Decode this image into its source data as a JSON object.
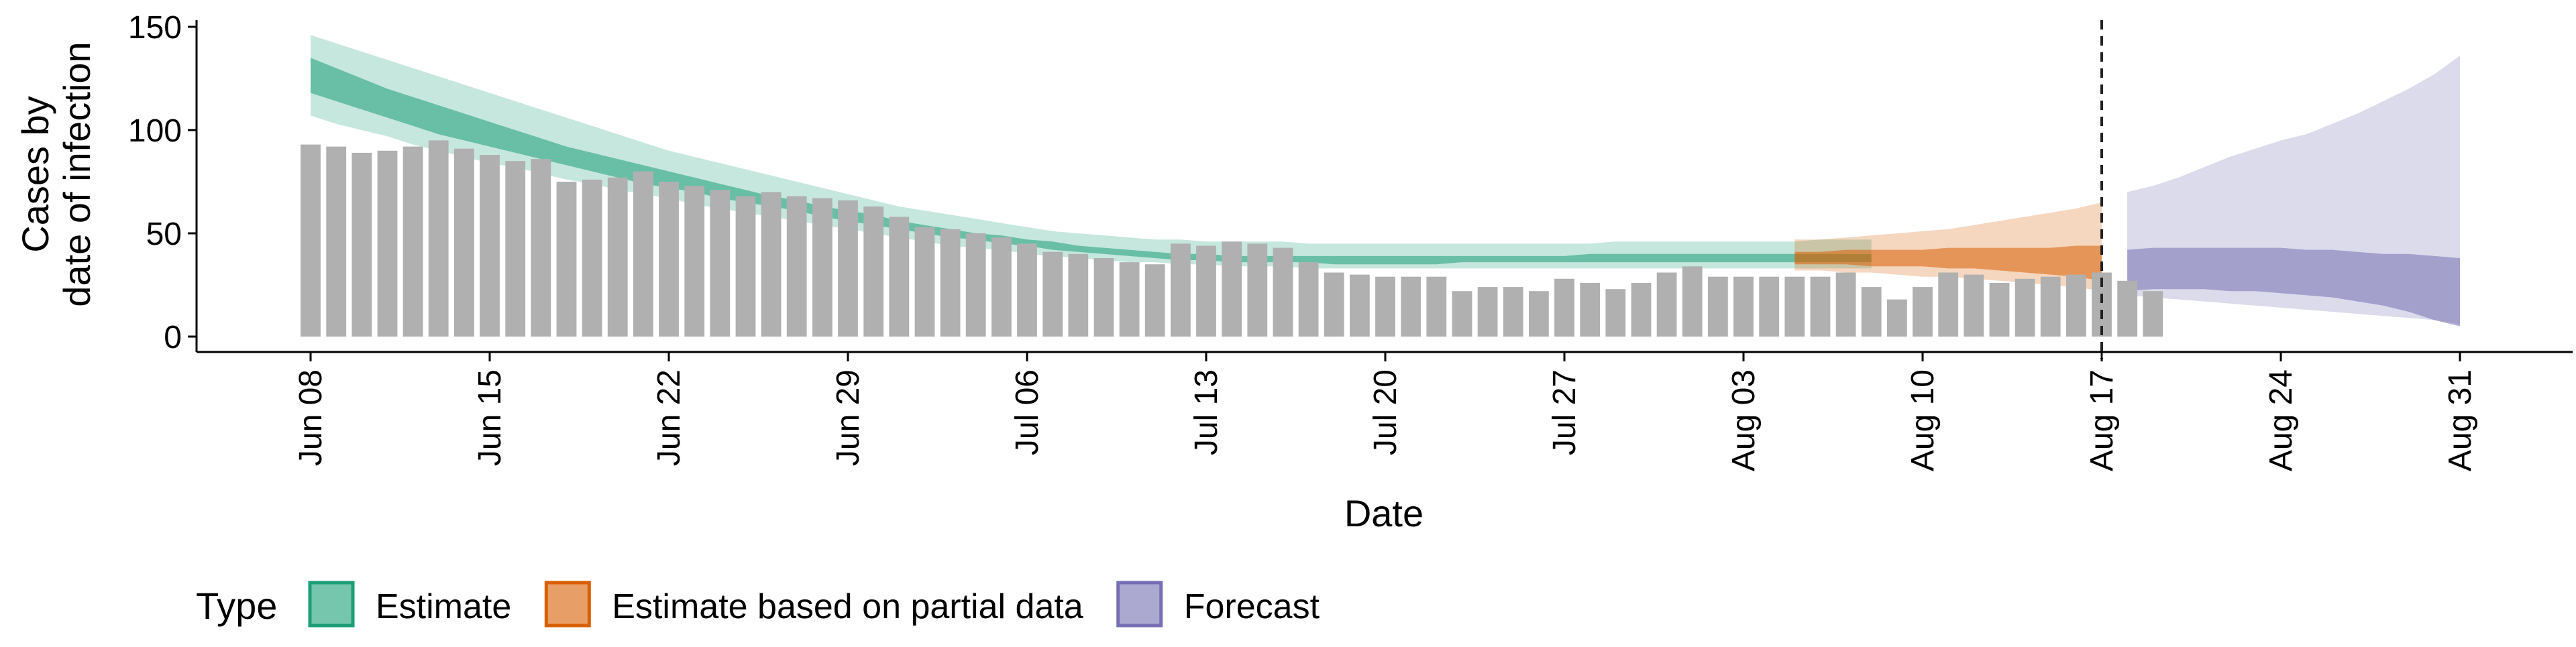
{
  "chart_data": {
    "type": "bar",
    "title": "",
    "xlabel": "Date",
    "ylabel": [
      "Cases by",
      "date of infection"
    ],
    "ylim": [
      0,
      150
    ],
    "yticks": [
      0,
      50,
      100,
      150
    ],
    "xlim": [
      "2020-06-08",
      "2020-08-31"
    ],
    "xticks": [
      "Jun 08",
      "Jun 15",
      "Jun 22",
      "Jun 29",
      "Jul 06",
      "Jul 13",
      "Jul 20",
      "Jul 27",
      "Aug 03",
      "Aug 10",
      "Aug 17",
      "Aug 24",
      "Aug 31"
    ],
    "xtick_dates": [
      "2020-06-08",
      "2020-06-15",
      "2020-06-22",
      "2020-06-29",
      "2020-07-06",
      "2020-07-13",
      "2020-07-20",
      "2020-07-27",
      "2020-08-03",
      "2020-08-10",
      "2020-08-17",
      "2020-08-24",
      "2020-08-31"
    ],
    "vline_date": "2020-08-17",
    "grid": false,
    "legend_position": "bottom-left",
    "legend": {
      "title": "Type",
      "entries": [
        {
          "label": "Estimate",
          "color": "#1b9e77"
        },
        {
          "label": "Estimate based on partial data",
          "color": "#d95f02"
        },
        {
          "label": "Forecast",
          "color": "#7570b3"
        }
      ]
    },
    "bars": {
      "color": "#b0b0b0",
      "start_date": "2020-06-08",
      "values": [
        93,
        92,
        89,
        90,
        92,
        95,
        91,
        88,
        85,
        86,
        75,
        76,
        77,
        80,
        75,
        73,
        71,
        68,
        70,
        68,
        67,
        66,
        63,
        58,
        53,
        52,
        50,
        48,
        45,
        41,
        40,
        38,
        36,
        35,
        45,
        44,
        46,
        45,
        43,
        36,
        31,
        30,
        29,
        29,
        29,
        22,
        24,
        24,
        22,
        28,
        26,
        23,
        26,
        31,
        34,
        29,
        29,
        29,
        29,
        29,
        31,
        24,
        18,
        24,
        31,
        30,
        26,
        28,
        29,
        30,
        31,
        27,
        22
      ]
    },
    "series": [
      {
        "name": "Estimate",
        "color": "#1b9e77",
        "start_date": "2020-06-08",
        "outer_lower": [
          107,
          103,
          100,
          97,
          93,
          90,
          87,
          84,
          82,
          79,
          76,
          74,
          71,
          69,
          67,
          64,
          62,
          60,
          58,
          56,
          54,
          52,
          50,
          48,
          46,
          44,
          43,
          42,
          40,
          39,
          38,
          37,
          36,
          36,
          35,
          35,
          34,
          34,
          34,
          33,
          33,
          33,
          33,
          33,
          33,
          33,
          33,
          33,
          33,
          33,
          33,
          33,
          33,
          33,
          33,
          33,
          33,
          33,
          33,
          33,
          33,
          33
        ],
        "inner_lower": [
          118,
          114,
          110,
          106,
          102,
          98,
          95,
          92,
          89,
          86,
          83,
          80,
          77,
          74,
          72,
          70,
          67,
          65,
          63,
          61,
          58,
          56,
          54,
          52,
          50,
          48,
          47,
          45,
          44,
          42,
          41,
          40,
          39,
          38,
          37,
          37,
          36,
          36,
          36,
          36,
          35,
          35,
          35,
          35,
          35,
          36,
          36,
          36,
          36,
          36,
          36,
          36,
          36,
          36,
          36,
          36,
          36,
          36,
          36,
          36,
          36,
          36
        ],
        "inner_upper": [
          135,
          130,
          125,
          120,
          116,
          112,
          108,
          104,
          100,
          96,
          92,
          89,
          86,
          83,
          80,
          77,
          74,
          71,
          68,
          66,
          63,
          61,
          59,
          56,
          54,
          52,
          50,
          49,
          47,
          46,
          44,
          43,
          42,
          41,
          40,
          40,
          39,
          39,
          39,
          39,
          39,
          39,
          39,
          39,
          39,
          39,
          39,
          39,
          39,
          39,
          40,
          40,
          40,
          40,
          40,
          40,
          40,
          40,
          40,
          40,
          40,
          40
        ],
        "outer_upper": [
          146,
          142,
          138,
          134,
          130,
          126,
          122,
          118,
          114,
          110,
          106,
          102,
          98,
          94,
          90,
          87,
          84,
          81,
          78,
          75,
          72,
          69,
          66,
          63,
          61,
          59,
          57,
          55,
          53,
          51,
          50,
          49,
          48,
          47,
          47,
          46,
          46,
          46,
          46,
          45,
          45,
          45,
          45,
          45,
          45,
          45,
          45,
          45,
          45,
          45,
          45,
          46,
          46,
          46,
          46,
          46,
          46,
          46,
          46,
          47,
          47,
          47
        ]
      },
      {
        "name": "Estimate based on partial data",
        "color": "#d95f02",
        "start_date": "2020-08-05",
        "outer_lower": [
          32,
          32,
          31,
          31,
          30,
          29,
          29,
          28,
          27,
          26,
          25,
          24,
          22
        ],
        "inner_lower": [
          35,
          35,
          35,
          34,
          34,
          34,
          33,
          33,
          32,
          31,
          30,
          29,
          27
        ],
        "inner_upper": [
          41,
          41,
          42,
          42,
          42,
          42,
          43,
          43,
          43,
          43,
          43,
          44,
          44
        ],
        "outer_upper": [
          47,
          47,
          48,
          49,
          50,
          51,
          52,
          54,
          56,
          58,
          60,
          62,
          65
        ]
      },
      {
        "name": "Forecast",
        "color": "#7570b3",
        "start_date": "2020-08-18",
        "outer_lower": [
          20,
          19,
          18,
          17,
          16,
          15,
          14,
          13,
          12,
          11,
          10,
          9,
          8,
          6
        ],
        "inner_lower": [
          22,
          23,
          23,
          23,
          22,
          22,
          21,
          20,
          19,
          17,
          15,
          12,
          8,
          5
        ],
        "inner_upper": [
          42,
          43,
          43,
          43,
          43,
          43,
          43,
          42,
          42,
          41,
          40,
          40,
          39,
          38
        ],
        "outer_upper": [
          70,
          73,
          77,
          82,
          87,
          91,
          95,
          98,
          103,
          108,
          114,
          120,
          127,
          136
        ]
      }
    ]
  }
}
